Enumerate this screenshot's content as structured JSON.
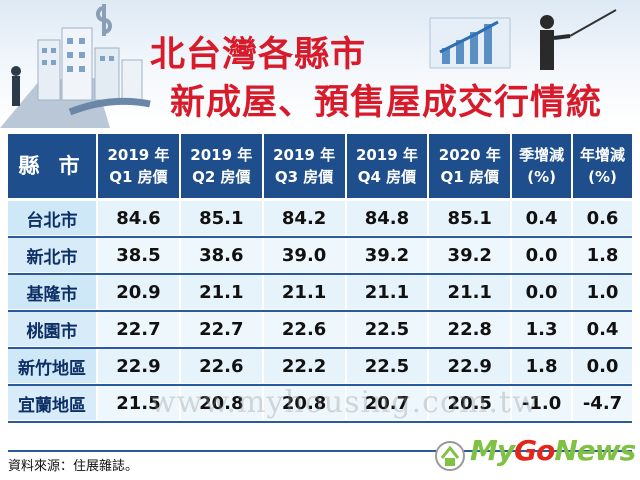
{
  "title": {
    "line1": "北台灣各縣市",
    "line2": "新成屋、預售屋成交行情統計"
  },
  "table": {
    "headers": [
      {
        "l1": "縣 市",
        "l2": ""
      },
      {
        "l1": "2019 年",
        "l2": "Q1 房價"
      },
      {
        "l1": "2019 年",
        "l2": "Q2 房價"
      },
      {
        "l1": "2019 年",
        "l2": "Q3 房價"
      },
      {
        "l1": "2019 年",
        "l2": "Q4 房價"
      },
      {
        "l1": "2020 年",
        "l2": "Q1 房價"
      },
      {
        "l1": "季增減",
        "l2": "(%)"
      },
      {
        "l1": "年增減",
        "l2": "(%)"
      }
    ],
    "rows": [
      [
        "台北市",
        "84.6",
        "85.1",
        "84.2",
        "84.8",
        "85.1",
        "0.4",
        "0.6"
      ],
      [
        "新北市",
        "38.5",
        "38.6",
        "39.0",
        "39.2",
        "39.2",
        "0.0",
        "1.8"
      ],
      [
        "基隆市",
        "20.9",
        "21.1",
        "21.1",
        "21.1",
        "21.1",
        "0.0",
        "1.0"
      ],
      [
        "桃園市",
        "22.7",
        "22.7",
        "22.6",
        "22.5",
        "22.8",
        "1.3",
        "0.4"
      ],
      [
        "新竹地區",
        "22.9",
        "22.6",
        "22.2",
        "22.5",
        "22.9",
        "1.8",
        "0.0"
      ],
      [
        "宜蘭地區",
        "21.5",
        "20.8",
        "20.8",
        "20.7",
        "20.5",
        "-1.0",
        "-4.7"
      ]
    ]
  },
  "source": "資料來源：住展雜誌。",
  "watermark": "www.myhousing.com.tw",
  "logo": {
    "my": "My",
    "go": "Go",
    "news": "News"
  },
  "colors": {
    "header_bg": "#1f4e8c",
    "title": "#d81b2a",
    "row_bg": "#e6f3fb"
  }
}
